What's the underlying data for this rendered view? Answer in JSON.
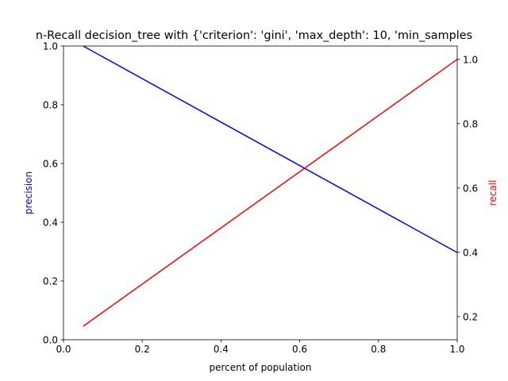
{
  "chart_data": {
    "type": "line",
    "title": "n-Recall decision_tree with {'criterion': 'gini', 'max_depth': 10, 'min_samples",
    "xlabel": "percent of population",
    "x": [
      0.05,
      1.0
    ],
    "xlim": [
      0.0,
      1.0
    ],
    "xticks": [
      "0.0",
      "0.2",
      "0.4",
      "0.6",
      "0.8",
      "1.0"
    ],
    "grid": false,
    "series": [
      {
        "axis": "left",
        "color": "#0000ff",
        "values": [
          1.0,
          0.297
        ]
      },
      {
        "axis": "right",
        "color": "#ff0000",
        "values": [
          0.17,
          1.0
        ]
      }
    ],
    "y_left": {
      "label": "precision",
      "label_color": "#0000ff",
      "lim": [
        0.0,
        1.0
      ],
      "ticks": [
        "0.0",
        "0.2",
        "0.4",
        "0.6",
        "0.8",
        "1.0"
      ]
    },
    "y_right": {
      "label": "recall",
      "label_color": "#ff0000",
      "lim": [
        0.128,
        1.0415
      ],
      "ticks": [
        "0.2",
        "0.4",
        "0.6",
        "0.8",
        "1.0"
      ]
    }
  }
}
